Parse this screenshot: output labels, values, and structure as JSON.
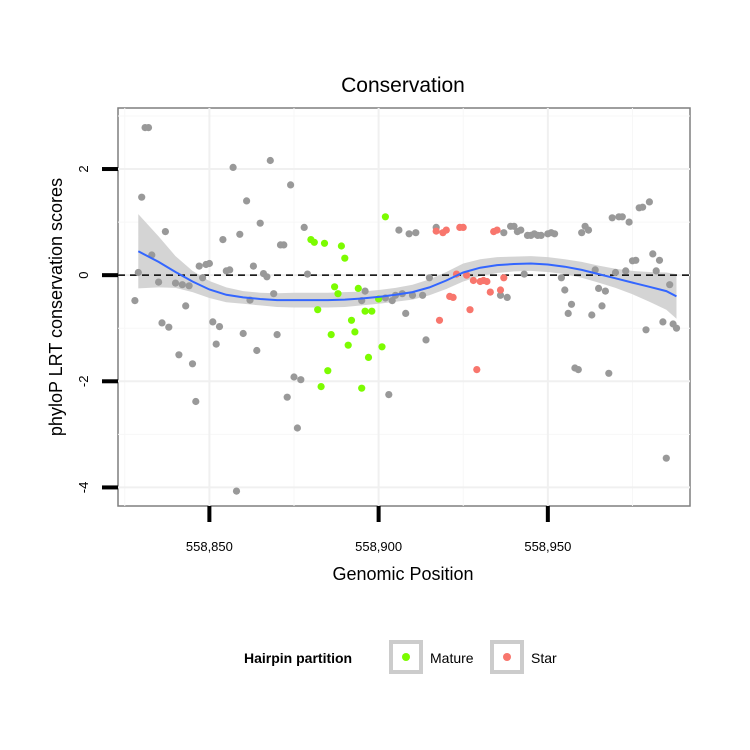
{
  "chart_data": {
    "type": "scatter",
    "title": "Conservation",
    "xlabel": "Genomic Position",
    "ylabel": "phyloP LRT conservation scores",
    "xlim": [
      558823,
      558992
    ],
    "ylim": [
      -4.35,
      3.15
    ],
    "x_ticks": [
      558850,
      558900,
      558950
    ],
    "x_tick_labels": [
      "558,850",
      "558,900",
      "558,950"
    ],
    "y_ticks": [
      -4,
      -2,
      0,
      2
    ],
    "y_tick_labels": [
      "-4",
      "-2",
      "0",
      "2"
    ],
    "grid": true,
    "reference_line": 0,
    "legend": {
      "title": "Hairpin partition",
      "placement": "bottom",
      "entries": [
        {
          "label": "Mature",
          "color": "#7CFC00"
        },
        {
          "label": "Star",
          "color": "#F8766D"
        }
      ]
    },
    "colors": {
      "other": "#999999",
      "Mature": "#7CFC00",
      "Star": "#F8766D",
      "smooth": "#3366FF",
      "band": "#cccccc"
    },
    "series": [
      {
        "group": "other",
        "points": [
          [
            558828,
            -0.48
          ],
          [
            558829,
            0.05
          ],
          [
            558830,
            1.47
          ],
          [
            558831,
            2.78
          ],
          [
            558832,
            2.78
          ],
          [
            558833,
            0.38
          ],
          [
            558835,
            -0.13
          ],
          [
            558836,
            -0.9
          ],
          [
            558837,
            0.82
          ],
          [
            558838,
            -0.98
          ],
          [
            558840,
            -0.15
          ],
          [
            558841,
            -1.5
          ],
          [
            558842,
            -0.18
          ],
          [
            558843,
            -0.58
          ],
          [
            558844,
            -0.2
          ],
          [
            558845,
            -1.67
          ],
          [
            558846,
            -2.38
          ],
          [
            558847,
            0.17
          ],
          [
            558848,
            -0.05
          ],
          [
            558849,
            0.2
          ],
          [
            558850,
            0.22
          ],
          [
            558851,
            -0.88
          ],
          [
            558852,
            -1.3
          ],
          [
            558853,
            -0.97
          ],
          [
            558854,
            0.67
          ],
          [
            558855,
            0.08
          ],
          [
            558856,
            0.1
          ],
          [
            558857,
            2.03
          ],
          [
            558858,
            -4.07
          ],
          [
            558859,
            0.77
          ],
          [
            558860,
            -1.1
          ],
          [
            558861,
            1.4
          ],
          [
            558862,
            -0.47
          ],
          [
            558863,
            0.17
          ],
          [
            558864,
            -1.42
          ],
          [
            558865,
            0.98
          ],
          [
            558866,
            0.03
          ],
          [
            558867,
            -0.03
          ],
          [
            558868,
            2.16
          ],
          [
            558869,
            -0.35
          ],
          [
            558870,
            -1.12
          ],
          [
            558871,
            0.57
          ],
          [
            558872,
            0.57
          ],
          [
            558873,
            -2.3
          ],
          [
            558874,
            1.7
          ],
          [
            558875,
            -1.92
          ],
          [
            558876,
            -2.88
          ],
          [
            558877,
            -1.97
          ],
          [
            558878,
            0.9
          ],
          [
            558879,
            0.02
          ],
          [
            558895,
            -0.48
          ],
          [
            558896,
            -0.3
          ],
          [
            558902,
            -0.43
          ],
          [
            558903,
            -2.25
          ],
          [
            558904,
            -0.48
          ],
          [
            558905,
            -0.38
          ],
          [
            558906,
            0.85
          ],
          [
            558907,
            -0.35
          ],
          [
            558908,
            -0.72
          ],
          [
            558909,
            0.78
          ],
          [
            558910,
            -0.38
          ],
          [
            558911,
            0.8
          ],
          [
            558913,
            -0.38
          ],
          [
            558914,
            -1.22
          ],
          [
            558915,
            -0.05
          ],
          [
            558917,
            0.9
          ],
          [
            558936,
            -0.38
          ],
          [
            558937,
            0.8
          ],
          [
            558938,
            -0.42
          ],
          [
            558939,
            0.92
          ],
          [
            558940,
            0.92
          ],
          [
            558941,
            0.82
          ],
          [
            558942,
            0.85
          ],
          [
            558943,
            0.02
          ],
          [
            558944,
            0.75
          ],
          [
            558945,
            0.75
          ],
          [
            558946,
            0.78
          ],
          [
            558947,
            0.75
          ],
          [
            558948,
            0.75
          ],
          [
            558950,
            0.78
          ],
          [
            558951,
            0.8
          ],
          [
            558952,
            0.78
          ],
          [
            558954,
            -0.05
          ],
          [
            558955,
            -0.28
          ],
          [
            558956,
            -0.72
          ],
          [
            558957,
            -0.55
          ],
          [
            558958,
            -1.75
          ],
          [
            558959,
            -1.78
          ],
          [
            558960,
            0.8
          ],
          [
            558961,
            0.92
          ],
          [
            558962,
            0.85
          ],
          [
            558963,
            -0.75
          ],
          [
            558964,
            0.1
          ],
          [
            558965,
            -0.25
          ],
          [
            558966,
            -0.58
          ],
          [
            558967,
            -0.3
          ],
          [
            558968,
            -1.85
          ],
          [
            558969,
            1.08
          ],
          [
            558970,
            0.05
          ],
          [
            558971,
            1.1
          ],
          [
            558972,
            1.1
          ],
          [
            558973,
            0.08
          ],
          [
            558974,
            1.0
          ],
          [
            558975,
            0.27
          ],
          [
            558976,
            0.28
          ],
          [
            558977,
            1.27
          ],
          [
            558978,
            1.28
          ],
          [
            558979,
            -1.03
          ],
          [
            558980,
            1.38
          ],
          [
            558981,
            0.4
          ],
          [
            558982,
            0.08
          ],
          [
            558983,
            0.28
          ],
          [
            558984,
            -0.88
          ],
          [
            558985,
            -3.45
          ],
          [
            558986,
            -0.18
          ],
          [
            558987,
            -0.92
          ],
          [
            558988,
            -1.0
          ]
        ]
      },
      {
        "group": "Mature",
        "points": [
          [
            558880,
            0.67
          ],
          [
            558881,
            0.62
          ],
          [
            558882,
            -0.65
          ],
          [
            558883,
            -2.1
          ],
          [
            558884,
            0.6
          ],
          [
            558885,
            -1.8
          ],
          [
            558886,
            -1.12
          ],
          [
            558887,
            -0.22
          ],
          [
            558888,
            -0.35
          ],
          [
            558889,
            0.55
          ],
          [
            558890,
            0.32
          ],
          [
            558891,
            -1.32
          ],
          [
            558892,
            -0.85
          ],
          [
            558893,
            -1.07
          ],
          [
            558894,
            -0.25
          ],
          [
            558895,
            -2.13
          ],
          [
            558896,
            -0.68
          ],
          [
            558897,
            -1.55
          ],
          [
            558898,
            -0.68
          ],
          [
            558900,
            -0.45
          ],
          [
            558901,
            -1.35
          ],
          [
            558902,
            1.1
          ]
        ]
      },
      {
        "group": "Star",
        "points": [
          [
            558917,
            0.83
          ],
          [
            558918,
            -0.85
          ],
          [
            558919,
            0.8
          ],
          [
            558920,
            0.85
          ],
          [
            558921,
            -0.4
          ],
          [
            558922,
            -0.42
          ],
          [
            558923,
            0.02
          ],
          [
            558924,
            0.9
          ],
          [
            558925,
            0.9
          ],
          [
            558926,
            0.0
          ],
          [
            558927,
            -0.65
          ],
          [
            558928,
            -0.1
          ],
          [
            558929,
            -1.78
          ],
          [
            558930,
            -0.12
          ],
          [
            558931,
            -0.1
          ],
          [
            558932,
            -0.12
          ],
          [
            558933,
            -0.32
          ],
          [
            558934,
            0.82
          ],
          [
            558935,
            0.85
          ],
          [
            558936,
            -0.28
          ],
          [
            558937,
            -0.05
          ]
        ]
      }
    ],
    "smooth": [
      [
        558829,
        0.45
      ],
      [
        558835,
        0.25
      ],
      [
        558840,
        0.06
      ],
      [
        558845,
        -0.12
      ],
      [
        558850,
        -0.27
      ],
      [
        558855,
        -0.37
      ],
      [
        558860,
        -0.42
      ],
      [
        558865,
        -0.45
      ],
      [
        558870,
        -0.47
      ],
      [
        558875,
        -0.47
      ],
      [
        558880,
        -0.47
      ],
      [
        558885,
        -0.47
      ],
      [
        558890,
        -0.46
      ],
      [
        558895,
        -0.44
      ],
      [
        558900,
        -0.41
      ],
      [
        558905,
        -0.37
      ],
      [
        558910,
        -0.32
      ],
      [
        558915,
        -0.23
      ],
      [
        558920,
        -0.1
      ],
      [
        558925,
        0.05
      ],
      [
        558930,
        0.14
      ],
      [
        558935,
        0.19
      ],
      [
        558940,
        0.21
      ],
      [
        558945,
        0.22
      ],
      [
        558950,
        0.2
      ],
      [
        558955,
        0.16
      ],
      [
        558960,
        0.1
      ],
      [
        558965,
        0.02
      ],
      [
        558970,
        -0.06
      ],
      [
        558975,
        -0.14
      ],
      [
        558980,
        -0.22
      ],
      [
        558985,
        -0.3
      ],
      [
        558988,
        -0.4
      ]
    ],
    "smooth_se": [
      [
        558829,
        0.7
      ],
      [
        558835,
        0.48
      ],
      [
        558840,
        0.3
      ],
      [
        558845,
        0.2
      ],
      [
        558850,
        0.16
      ],
      [
        558855,
        0.14
      ],
      [
        558860,
        0.12
      ],
      [
        558865,
        0.12
      ],
      [
        558870,
        0.13
      ],
      [
        558875,
        0.14
      ],
      [
        558880,
        0.14
      ],
      [
        558885,
        0.14
      ],
      [
        558890,
        0.14
      ],
      [
        558895,
        0.13
      ],
      [
        558900,
        0.13
      ],
      [
        558905,
        0.13
      ],
      [
        558910,
        0.14
      ],
      [
        558915,
        0.15
      ],
      [
        558920,
        0.16
      ],
      [
        558925,
        0.17
      ],
      [
        558930,
        0.16
      ],
      [
        558935,
        0.15
      ],
      [
        558940,
        0.14
      ],
      [
        558945,
        0.14
      ],
      [
        558950,
        0.14
      ],
      [
        558955,
        0.14
      ],
      [
        558960,
        0.15
      ],
      [
        558965,
        0.16
      ],
      [
        558970,
        0.18
      ],
      [
        558975,
        0.22
      ],
      [
        558980,
        0.28
      ],
      [
        558985,
        0.35
      ],
      [
        558988,
        0.42
      ]
    ]
  }
}
